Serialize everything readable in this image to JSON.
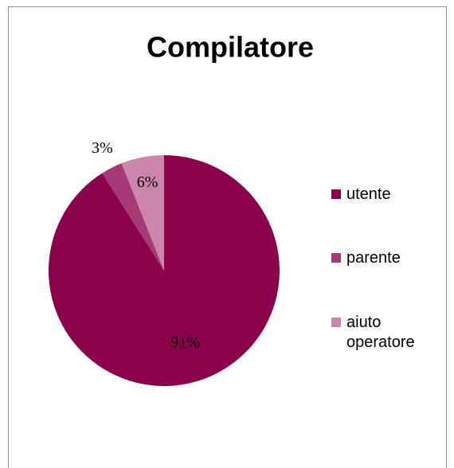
{
  "chart_data": {
    "type": "pie",
    "title": "Compilatore",
    "categories": [
      "utente",
      "parente",
      "aiuto operatore"
    ],
    "values": [
      91,
      3,
      6
    ],
    "value_labels": [
      "91%",
      "3%",
      "6%"
    ],
    "colors": [
      "#8a004a",
      "#a63a76",
      "#cc86ac"
    ],
    "legend": "right"
  }
}
